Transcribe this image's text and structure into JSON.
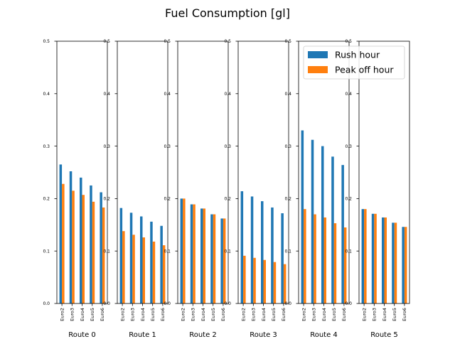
{
  "chart_data": {
    "type": "bar",
    "title": "Fuel Consumption [gl]",
    "categories": [
      "Euro2",
      "Euro3",
      "Euro4",
      "Euro5",
      "Euro6"
    ],
    "ylim": [
      0,
      0.5
    ],
    "yticks": [
      0.0,
      0.1,
      0.2,
      0.3,
      0.4,
      0.5
    ],
    "ytick_labels": [
      "0.0",
      "0.1",
      "0.2",
      "0.3",
      "0.4",
      "0.5"
    ],
    "grid": false,
    "legend": {
      "placement": "top-right",
      "entries": [
        "Rush hour",
        "Peak off hour"
      ]
    },
    "colors": {
      "Rush hour": "#1f77b4",
      "Peak off hour": "#ff7f0e"
    },
    "subplots": [
      {
        "xlabel": "Route 0",
        "series": [
          {
            "name": "Rush hour",
            "values": [
              0.265,
              0.252,
              0.24,
              0.225,
              0.212
            ]
          },
          {
            "name": "Peak off hour",
            "values": [
              0.228,
              0.215,
              0.207,
              0.194,
              0.183
            ]
          }
        ]
      },
      {
        "xlabel": "Route 1",
        "series": [
          {
            "name": "Rush hour",
            "values": [
              0.182,
              0.173,
              0.166,
              0.156,
              0.148
            ]
          },
          {
            "name": "Peak off hour",
            "values": [
              0.138,
              0.131,
              0.126,
              0.118,
              0.111
            ]
          }
        ]
      },
      {
        "xlabel": "Route 2",
        "series": [
          {
            "name": "Rush hour",
            "values": [
              0.2,
              0.189,
              0.181,
              0.17,
              0.162
            ]
          },
          {
            "name": "Peak off hour",
            "values": [
              0.2,
              0.189,
              0.181,
              0.17,
              0.162
            ]
          }
        ]
      },
      {
        "xlabel": "Route 3",
        "series": [
          {
            "name": "Rush hour",
            "values": [
              0.214,
              0.204,
              0.195,
              0.183,
              0.172
            ]
          },
          {
            "name": "Peak off hour",
            "values": [
              0.091,
              0.087,
              0.083,
              0.079,
              0.075
            ]
          }
        ]
      },
      {
        "xlabel": "Route 4",
        "series": [
          {
            "name": "Rush hour",
            "values": [
              0.33,
              0.312,
              0.3,
              0.28,
              0.264
            ]
          },
          {
            "name": "Peak off hour",
            "values": [
              0.18,
              0.17,
              0.164,
              0.153,
              0.145
            ]
          }
        ]
      },
      {
        "xlabel": "Route 5",
        "series": [
          {
            "name": "Rush hour",
            "values": [
              0.18,
              0.171,
              0.164,
              0.154,
              0.146
            ]
          },
          {
            "name": "Peak off hour",
            "values": [
              0.18,
              0.171,
              0.164,
              0.154,
              0.146
            ]
          }
        ]
      }
    ]
  }
}
